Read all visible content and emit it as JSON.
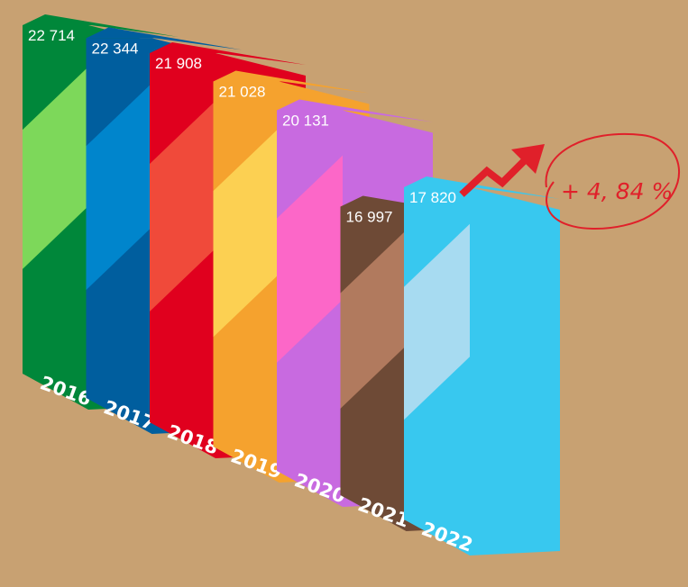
{
  "chart_data": {
    "type": "bar",
    "categories": [
      "2016",
      "2017",
      "2018",
      "2019",
      "2020",
      "2021",
      "2022"
    ],
    "values": [
      22714,
      22344,
      21908,
      21028,
      20131,
      16997,
      17820
    ],
    "value_labels": [
      "22 714",
      "22 344",
      "21 908",
      "21 028",
      "20 131",
      "16 997",
      "17 820"
    ],
    "title": "",
    "xlabel": "",
    "ylabel": "",
    "annotation": "+ 4, 84 %",
    "style": "3d-columns",
    "bar_colors": [
      {
        "front": "#00873a",
        "stripe": "#7dd85a",
        "side": "#00873a"
      },
      {
        "front": "#005e9e",
        "stripe": "#0085cc",
        "side": "#005e9e"
      },
      {
        "front": "#e0001e",
        "stripe": "#f04a3a",
        "side": "#e0001e"
      },
      {
        "front": "#f5a22e",
        "stripe": "#fcd052",
        "side": "#f5a22e"
      },
      {
        "front": "#c86ae0",
        "stripe": "#fc67c8",
        "side": "#c86ae0"
      },
      {
        "front": "#6e4a36",
        "stripe": "#b17a5e",
        "side": "#6e4a36"
      },
      {
        "front": "#38c8ef",
        "stripe": "#a7dbf1",
        "side": "#38c8ef"
      }
    ],
    "background": "#c8a172",
    "arrow_color": "#e0202a"
  }
}
